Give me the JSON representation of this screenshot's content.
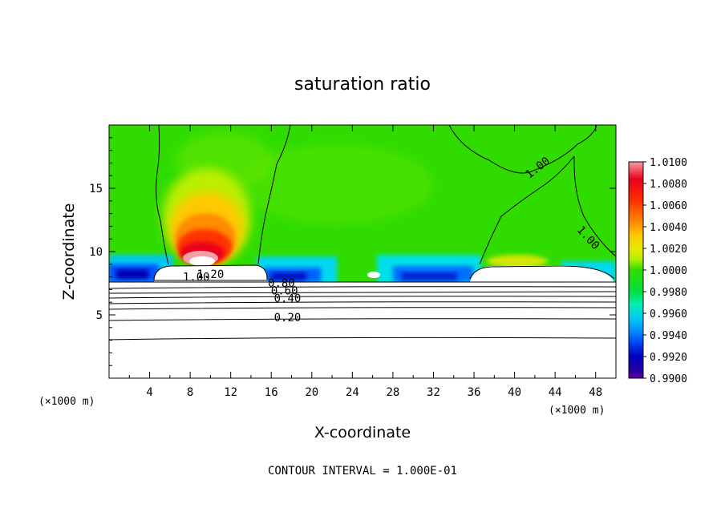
{
  "chart_data": {
    "type": "heatmap",
    "title": "saturation ratio",
    "xlabel": "X-coordinate",
    "ylabel": "Z-coordinate",
    "x_unit_left": "(×1000 m)",
    "x_unit_right": "(×1000 m)",
    "xlim": [
      0,
      50
    ],
    "ylim": [
      0,
      20
    ],
    "x_ticks": [
      4,
      8,
      12,
      16,
      20,
      24,
      28,
      32,
      36,
      40,
      44,
      48
    ],
    "x_tick_labels": [
      "4",
      "8",
      "12",
      "16",
      "20",
      "24",
      "28",
      "32",
      "36",
      "40",
      "44",
      "48"
    ],
    "y_ticks": [
      5,
      10,
      15
    ],
    "y_tick_labels": [
      "5",
      "10",
      "15"
    ],
    "colorbar": {
      "min": 0.99,
      "max": 1.01,
      "labels": [
        "1.0100",
        "1.0080",
        "1.0060",
        "1.0040",
        "1.0020",
        "1.0000",
        "0.9980",
        "0.9960",
        "0.9940",
        "0.9920",
        "0.9900"
      ],
      "colors": [
        "#f4a0a8",
        "#e8001a",
        "#ff3000",
        "#ff8c00",
        "#ffc800",
        "#e8e800",
        "#b4f000",
        "#30dc00",
        "#00f090",
        "#00ccf0",
        "#0070ff",
        "#0030d0",
        "#0000a0",
        "#6000a0"
      ]
    },
    "contour_labels": [
      {
        "text": "1.00",
        "x": 8.6,
        "z": 7.7
      },
      {
        "text": "1.20",
        "x": 10.0,
        "z": 7.9
      },
      {
        "text": "0.80",
        "x": 17.0,
        "z": 7.2
      },
      {
        "text": "0.60",
        "x": 17.3,
        "z": 6.6
      },
      {
        "text": "0.40",
        "x": 17.6,
        "z": 6.0
      },
      {
        "text": "0.20",
        "x": 17.6,
        "z": 4.5
      },
      {
        "text": "1.00",
        "x": 42.5,
        "z": 16.4
      },
      {
        "text": "1.00",
        "x": 47.0,
        "z": 10.9
      }
    ],
    "contour_interval": "CONTOUR INTERVAL = 1.000E-01"
  }
}
